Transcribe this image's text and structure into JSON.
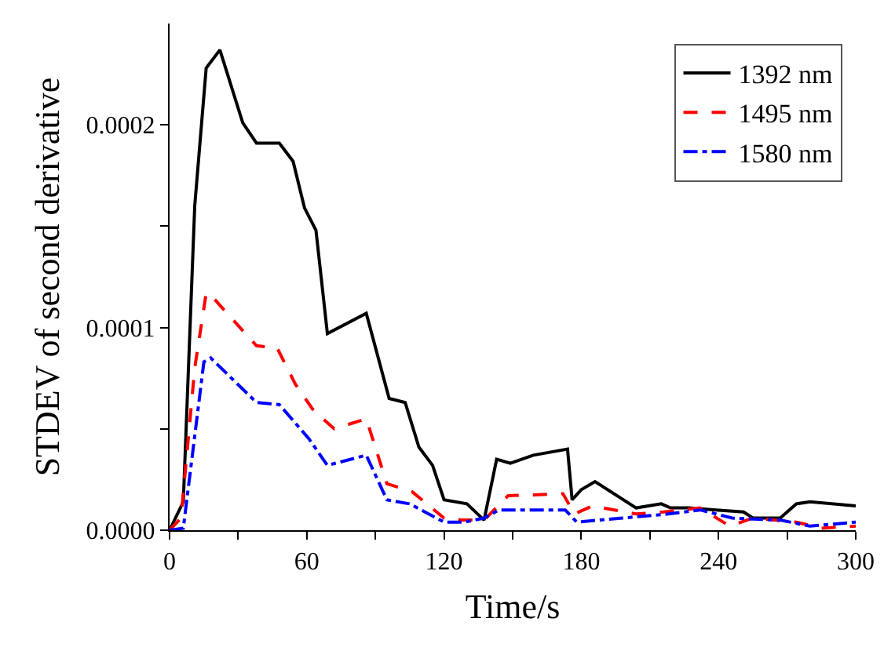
{
  "chart_data": {
    "type": "line",
    "xlabel": "Time/s",
    "ylabel": "STDEV of second derivative",
    "xlim": [
      0,
      300
    ],
    "ylim": [
      0,
      0.00025
    ],
    "xticks": [
      0,
      {
        "value": 30,
        "label": null
      },
      60,
      {
        "value": 90,
        "label": null
      },
      120,
      {
        "value": 150,
        "label": null
      },
      180,
      {
        "value": 210,
        "label": null
      },
      240,
      {
        "value": 270,
        "label": null
      },
      300
    ],
    "yticks": [
      {
        "value": 0,
        "label": "0.0000"
      },
      {
        "value": 5e-05,
        "label": null
      },
      {
        "value": 0.0001,
        "label": "0.0001"
      },
      {
        "value": 0.00015,
        "label": null
      },
      {
        "value": 0.0002,
        "label": "0.0002"
      }
    ],
    "grid": false,
    "legend": "top right",
    "marker": "none",
    "series": [
      {
        "name": "1392 nm",
        "color": "#000000",
        "line_style": "solid",
        "x": [
          0,
          6,
          11,
          16,
          22,
          32,
          38,
          48,
          54,
          59,
          64,
          69,
          86,
          96,
          103,
          109,
          115,
          120,
          130,
          137.5,
          143,
          149,
          159,
          174,
          176,
          180,
          186,
          204,
          215,
          219,
          227,
          239,
          251,
          255,
          267,
          274,
          280,
          300
        ],
        "values": [
          0,
          1.4e-05,
          0.00016,
          0.000228,
          0.000237,
          0.000201,
          0.000191,
          0.000191,
          0.000182,
          0.000159,
          0.000148,
          9.7e-05,
          0.000107,
          6.5e-05,
          6.3e-05,
          4.1e-05,
          3.2e-05,
          1.5e-05,
          1.3e-05,
          5e-06,
          3.5e-05,
          3.3e-05,
          3.7e-05,
          4e-05,
          1.5e-05,
          2e-05,
          2.4e-05,
          1.1e-05,
          1.3e-05,
          1.1e-05,
          1.1e-05,
          1e-05,
          9e-06,
          6e-06,
          6e-06,
          1.3e-05,
          1.4e-05,
          1.2e-05
        ]
      },
      {
        "name": "1495 nm",
        "color": "#ff0000",
        "line_style": "dashed",
        "x": [
          0,
          5,
          11,
          16,
          18,
          38,
          47,
          55,
          63,
          72,
          86,
          95,
          106,
          120,
          128,
          137.5,
          148,
          172,
          177,
          185,
          204,
          216,
          232,
          245,
          255,
          274,
          285,
          300
        ],
        "values": [
          0,
          6e-06,
          8e-05,
          0.000117,
          0.000116,
          9.1e-05,
          9e-05,
          7.2e-05,
          5.9e-05,
          5e-05,
          5.5e-05,
          2.3e-05,
          1.9e-05,
          6e-06,
          5e-06,
          5e-06,
          1.7e-05,
          1.8e-05,
          8e-06,
          1.2e-05,
          8e-06,
          9e-06,
          1.1e-05,
          2e-06,
          6e-06,
          4e-06,
          1e-06,
          2e-06
        ]
      },
      {
        "name": "1580 nm",
        "color": "#0000ff",
        "line_style": "dashdot",
        "x": [
          0,
          6,
          15,
          18,
          38,
          48,
          61,
          69,
          86,
          95,
          105,
          120,
          129,
          137.5,
          144,
          173,
          178,
          198,
          218,
          232,
          246,
          267,
          280,
          300
        ],
        "values": [
          0,
          1e-06,
          8.3e-05,
          8.5e-05,
          6.3e-05,
          6.2e-05,
          4.5e-05,
          3.2e-05,
          3.7e-05,
          1.5e-05,
          1.3e-05,
          4e-06,
          4e-06,
          6e-06,
          1e-05,
          1e-05,
          4e-06,
          6e-06,
          8e-06,
          1e-05,
          6e-06,
          5e-06,
          2e-06,
          4e-06
        ]
      }
    ]
  }
}
